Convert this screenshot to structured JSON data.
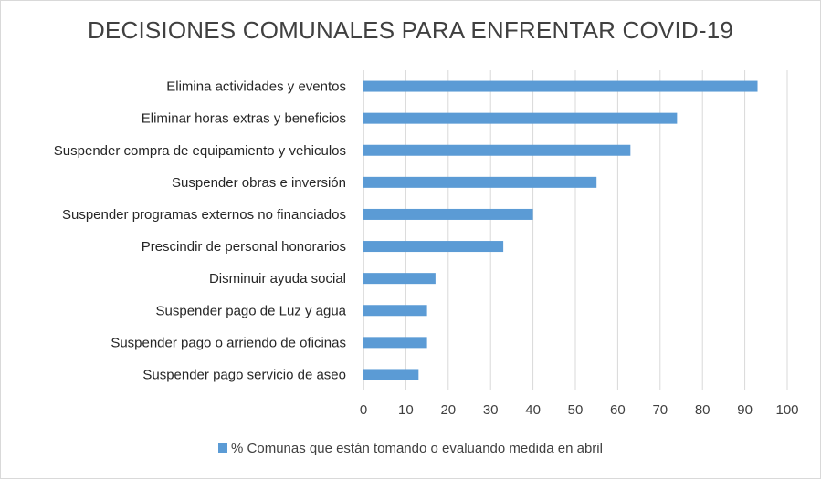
{
  "chart_data": {
    "type": "bar",
    "orientation": "horizontal",
    "title": "DECISIONES COMUNALES PARA ENFRENTAR COVID-19",
    "categories": [
      "Elimina actividades y eventos",
      "Eliminar horas extras y beneficios",
      "Suspender compra de equipamiento y vehiculos",
      "Suspender obras e inversión",
      "Suspender programas externos no financiados",
      "Prescindir de personal honorarios",
      "Disminuir ayuda social",
      "Suspender pago de Luz y agua",
      "Suspender pago o arriendo de oficinas",
      "Suspender pago servicio de aseo"
    ],
    "series": [
      {
        "name": "% Comunas que están tomando o evaluando medida en abril",
        "color": "#5b9bd5",
        "values": [
          93,
          74,
          63,
          55,
          40,
          33,
          17,
          15,
          15,
          13
        ]
      }
    ],
    "xlim": [
      0,
      100
    ],
    "xticks": [
      0,
      10,
      20,
      30,
      40,
      50,
      60,
      70,
      80,
      90,
      100
    ],
    "grid": true,
    "legend_position": "bottom"
  }
}
